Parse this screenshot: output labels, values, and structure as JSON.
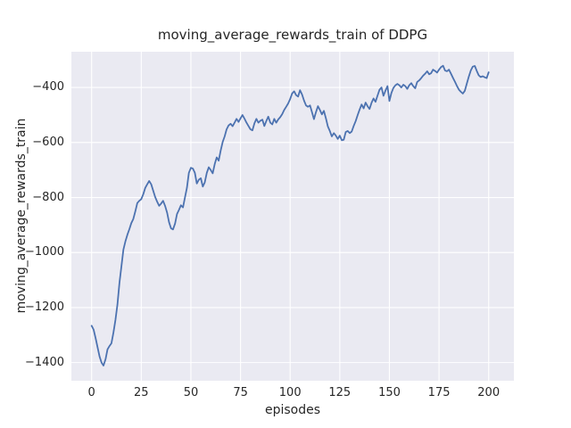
{
  "chart_data": {
    "type": "line",
    "title": "moving_average_rewards_train of DDPG",
    "xlabel": "episodes",
    "ylabel": "moving_average_rewards_train",
    "x_ticks": [
      0,
      25,
      50,
      75,
      100,
      125,
      150,
      175,
      200
    ],
    "y_ticks": [
      -1400,
      -1200,
      -1000,
      -800,
      -600,
      -400
    ],
    "xlim": [
      -10.2,
      212.7
    ],
    "ylim": [
      -1466,
      -270
    ],
    "grid": true,
    "legend": "none",
    "line_color": "#4c72b0",
    "plot_background": "#eaeaf2",
    "grid_color": "#ffffff",
    "text_color": "#262626",
    "series": [
      {
        "name": "moving_average_rewards_train",
        "x_start": 0,
        "x_step": 1,
        "values": [
          -1266,
          -1280,
          -1310,
          -1345,
          -1378,
          -1400,
          -1411,
          -1388,
          -1352,
          -1340,
          -1330,
          -1290,
          -1245,
          -1190,
          -1110,
          -1050,
          -990,
          -960,
          -935,
          -915,
          -893,
          -878,
          -850,
          -820,
          -812,
          -806,
          -788,
          -765,
          -752,
          -740,
          -752,
          -775,
          -798,
          -815,
          -830,
          -822,
          -812,
          -830,
          -855,
          -890,
          -912,
          -916,
          -895,
          -860,
          -845,
          -828,
          -836,
          -800,
          -765,
          -710,
          -692,
          -695,
          -710,
          -749,
          -735,
          -730,
          -760,
          -745,
          -710,
          -690,
          -700,
          -712,
          -678,
          -654,
          -666,
          -630,
          -598,
          -578,
          -552,
          -538,
          -532,
          -541,
          -528,
          -514,
          -525,
          -512,
          -500,
          -513,
          -528,
          -540,
          -552,
          -556,
          -530,
          -514,
          -528,
          -521,
          -517,
          -540,
          -522,
          -506,
          -528,
          -534,
          -514,
          -528,
          -516,
          -508,
          -497,
          -482,
          -470,
          -458,
          -442,
          -422,
          -414,
          -428,
          -433,
          -410,
          -426,
          -448,
          -465,
          -470,
          -465,
          -490,
          -515,
          -490,
          -468,
          -482,
          -498,
          -485,
          -512,
          -542,
          -558,
          -578,
          -566,
          -575,
          -587,
          -575,
          -592,
          -590,
          -562,
          -558,
          -566,
          -560,
          -540,
          -522,
          -500,
          -480,
          -462,
          -476,
          -455,
          -468,
          -478,
          -455,
          -440,
          -452,
          -430,
          -408,
          -400,
          -430,
          -412,
          -395,
          -449,
          -420,
          -402,
          -392,
          -387,
          -392,
          -400,
          -390,
          -395,
          -405,
          -392,
          -384,
          -395,
          -403,
          -380,
          -374,
          -366,
          -357,
          -350,
          -341,
          -352,
          -348,
          -335,
          -340,
          -346,
          -335,
          -326,
          -321,
          -338,
          -341,
          -335,
          -350,
          -365,
          -379,
          -394,
          -408,
          -416,
          -422,
          -412,
          -385,
          -360,
          -338,
          -324,
          -322,
          -340,
          -356,
          -362,
          -359,
          -363,
          -366,
          -345
        ]
      }
    ]
  }
}
